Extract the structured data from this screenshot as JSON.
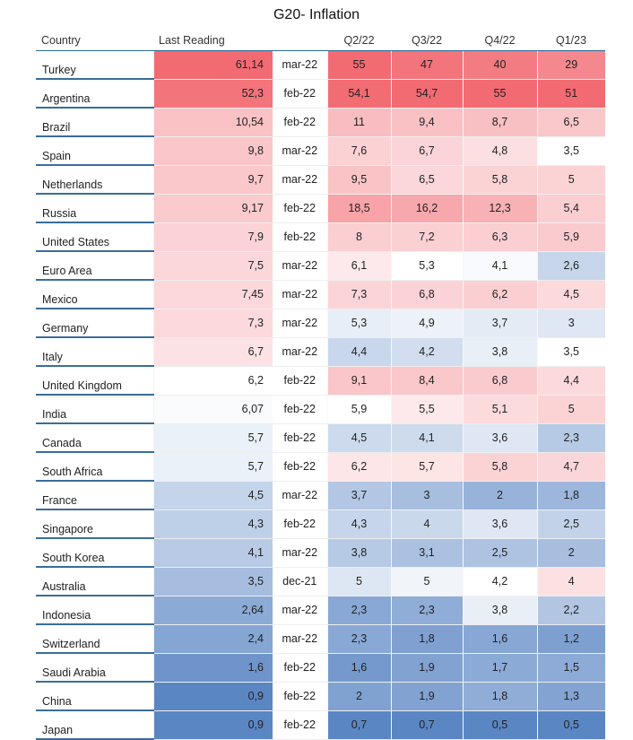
{
  "title": "G20- Inflation",
  "colors": {
    "high": "#f26b73",
    "mid": "#ffffff",
    "low": "#5b86c4",
    "header_rule": "#2e6b99"
  },
  "chart_data": {
    "type": "table",
    "title": "G20- Inflation",
    "columns": [
      "Country",
      "Last Reading",
      "",
      "Q2/22",
      "Q3/22",
      "Q4/22",
      "Q1/23"
    ],
    "rows": [
      {
        "country": "Turkey",
        "last_reading": "61,14",
        "date": "mar-22",
        "q2_22": "55",
        "q3_22": "47",
        "q4_22": "40",
        "q1_23": "29"
      },
      {
        "country": "Argentina",
        "last_reading": "52,3",
        "date": "feb-22",
        "q2_22": "54,1",
        "q3_22": "54,7",
        "q4_22": "55",
        "q1_23": "51"
      },
      {
        "country": "Brazil",
        "last_reading": "10,54",
        "date": "feb-22",
        "q2_22": "11",
        "q3_22": "9,4",
        "q4_22": "8,7",
        "q1_23": "6,5"
      },
      {
        "country": "Spain",
        "last_reading": "9,8",
        "date": "mar-22",
        "q2_22": "7,6",
        "q3_22": "6,7",
        "q4_22": "4,8",
        "q1_23": "3,5"
      },
      {
        "country": "Netherlands",
        "last_reading": "9,7",
        "date": "mar-22",
        "q2_22": "9,5",
        "q3_22": "6,5",
        "q4_22": "5,8",
        "q1_23": "5"
      },
      {
        "country": "Russia",
        "last_reading": "9,17",
        "date": "feb-22",
        "q2_22": "18,5",
        "q3_22": "16,2",
        "q4_22": "12,3",
        "q1_23": "5,4"
      },
      {
        "country": "United States",
        "last_reading": "7,9",
        "date": "feb-22",
        "q2_22": "8",
        "q3_22": "7,2",
        "q4_22": "6,3",
        "q1_23": "5,9"
      },
      {
        "country": "Euro Area",
        "last_reading": "7,5",
        "date": "mar-22",
        "q2_22": "6,1",
        "q3_22": "5,3",
        "q4_22": "4,1",
        "q1_23": "2,6"
      },
      {
        "country": "Mexico",
        "last_reading": "7,45",
        "date": "mar-22",
        "q2_22": "7,3",
        "q3_22": "6,8",
        "q4_22": "6,2",
        "q1_23": "4,5"
      },
      {
        "country": "Germany",
        "last_reading": "7,3",
        "date": "mar-22",
        "q2_22": "5,3",
        "q3_22": "4,9",
        "q4_22": "3,7",
        "q1_23": "3"
      },
      {
        "country": "Italy",
        "last_reading": "6,7",
        "date": "mar-22",
        "q2_22": "4,4",
        "q3_22": "4,2",
        "q4_22": "3,8",
        "q1_23": "3,5"
      },
      {
        "country": "United Kingdom",
        "last_reading": "6,2",
        "date": "feb-22",
        "q2_22": "9,1",
        "q3_22": "8,4",
        "q4_22": "6,8",
        "q1_23": "4,4"
      },
      {
        "country": "India",
        "last_reading": "6,07",
        "date": "feb-22",
        "q2_22": "5,9",
        "q3_22": "5,5",
        "q4_22": "5,1",
        "q1_23": "5"
      },
      {
        "country": "Canada",
        "last_reading": "5,7",
        "date": "feb-22",
        "q2_22": "4,5",
        "q3_22": "4,1",
        "q4_22": "3,6",
        "q1_23": "2,3"
      },
      {
        "country": "South Africa",
        "last_reading": "5,7",
        "date": "feb-22",
        "q2_22": "6,2",
        "q3_22": "5,7",
        "q4_22": "5,8",
        "q1_23": "4,7"
      },
      {
        "country": "France",
        "last_reading": "4,5",
        "date": "mar-22",
        "q2_22": "3,7",
        "q3_22": "3",
        "q4_22": "2",
        "q1_23": "1,8"
      },
      {
        "country": "Singapore",
        "last_reading": "4,3",
        "date": "feb-22",
        "q2_22": "4,3",
        "q3_22": "4",
        "q4_22": "3,6",
        "q1_23": "2,5"
      },
      {
        "country": "South Korea",
        "last_reading": "4,1",
        "date": "mar-22",
        "q2_22": "3,8",
        "q3_22": "3,1",
        "q4_22": "2,5",
        "q1_23": "2"
      },
      {
        "country": "Australia",
        "last_reading": "3,5",
        "date": "dec-21",
        "q2_22": "5",
        "q3_22": "5",
        "q4_22": "4,2",
        "q1_23": "4"
      },
      {
        "country": "Indonesia",
        "last_reading": "2,64",
        "date": "mar-22",
        "q2_22": "2,3",
        "q3_22": "2,3",
        "q4_22": "3,8",
        "q1_23": "2,2"
      },
      {
        "country": "Switzerland",
        "last_reading": "2,4",
        "date": "mar-22",
        "q2_22": "2,3",
        "q3_22": "1,8",
        "q4_22": "1,6",
        "q1_23": "1,2"
      },
      {
        "country": "Saudi Arabia",
        "last_reading": "1,6",
        "date": "feb-22",
        "q2_22": "1,6",
        "q3_22": "1,9",
        "q4_22": "1,7",
        "q1_23": "1,5"
      },
      {
        "country": "China",
        "last_reading": "0,9",
        "date": "feb-22",
        "q2_22": "2",
        "q3_22": "1,9",
        "q4_22": "1,8",
        "q1_23": "1,3"
      },
      {
        "country": "Japan",
        "last_reading": "0,9",
        "date": "feb-22",
        "q2_22": "0,7",
        "q3_22": "0,7",
        "q4_22": "0,5",
        "q1_23": "0,5"
      }
    ]
  }
}
